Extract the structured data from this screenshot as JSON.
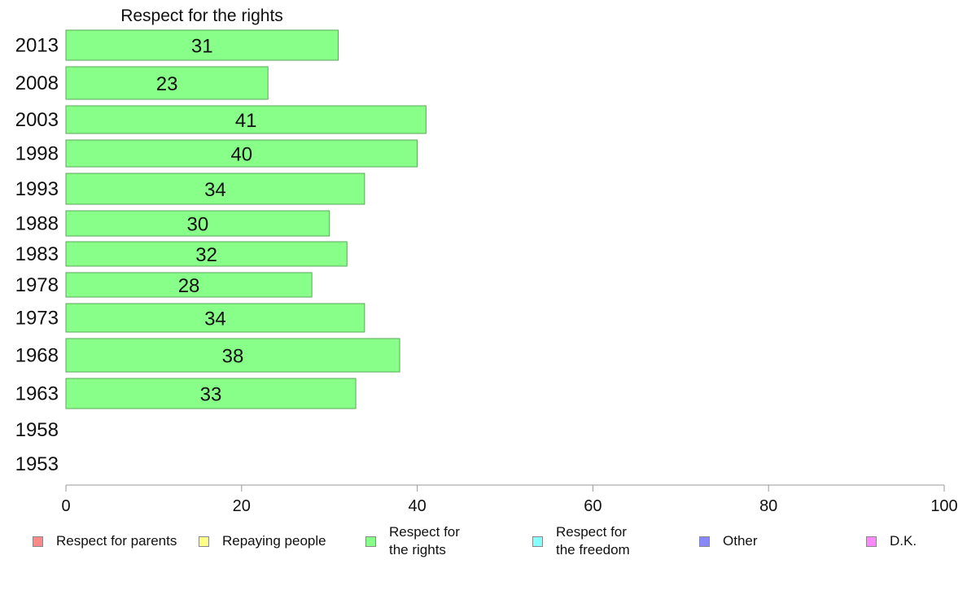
{
  "chart_data": {
    "type": "bar",
    "orientation": "horizontal",
    "title": "Respect for the rights",
    "categories": [
      "2013",
      "2008",
      "2003",
      "1998",
      "1993",
      "1988",
      "1983",
      "1978",
      "1973",
      "1968",
      "1963",
      "1958",
      "1953"
    ],
    "series": [
      {
        "name": "Respect for the rights",
        "color": "#88ff88",
        "values": [
          31,
          23,
          41,
          40,
          34,
          30,
          32,
          28,
          34,
          38,
          33,
          null,
          null
        ]
      }
    ],
    "xlim": [
      0,
      100
    ],
    "xticks": [
      "0",
      "20",
      "40",
      "60",
      "80",
      "100"
    ],
    "grid": false,
    "legend_position": "bottom"
  },
  "legend": [
    {
      "label": "Respect for parents",
      "color": "#ff8888"
    },
    {
      "label": "Repaying people",
      "color": "#ffff88"
    },
    {
      "label": "Respect for\nthe rights",
      "color": "#88ff88"
    },
    {
      "label": "Respect for\nthe freedom",
      "color": "#88ffff"
    },
    {
      "label": "Other",
      "color": "#8888ff"
    },
    {
      "label": "D.K.",
      "color": "#ff88ff"
    }
  ]
}
